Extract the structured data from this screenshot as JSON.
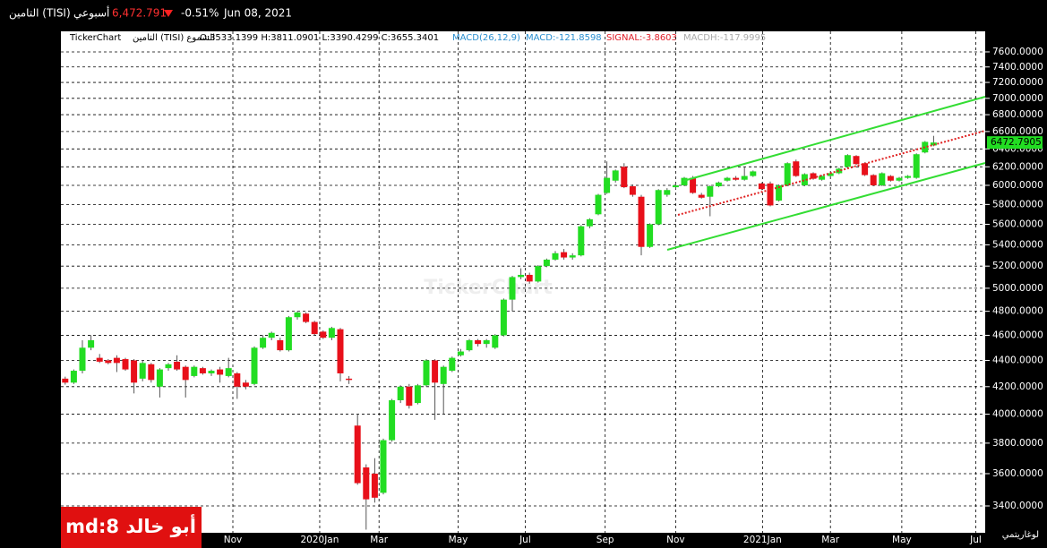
{
  "header": {
    "symbol": "التامين (TISI)",
    "period": "أسبوعي",
    "price": "6,472.791",
    "change": "-0.51%",
    "date": "Jun 08, 2021"
  },
  "legend": {
    "brand": "TickerChart",
    "instrument": "التامين (TISI) الشموع",
    "ohlc": "O:3533.1399 H:3811.0901 L:3390.4299 C:3655.3401",
    "macd": "MACD(26,12,9)",
    "macd_value": "MACD:-121.8598",
    "signal": "SIGNAL:-3.8603",
    "macdh": "MACDH:-117.9995"
  },
  "watermark": "TickerChart",
  "scale_mode": "لوغاريتمي",
  "badge": "md:8 أبو خالد",
  "chart_data": {
    "type": "candlestick",
    "log_scale": true,
    "grid": true,
    "up_color": "#22dd22",
    "down_color": "#e8101a",
    "last_price": 6472.7905,
    "x": [
      0,
      1,
      2,
      3,
      4,
      5,
      6,
      7,
      8,
      9,
      10,
      11,
      12,
      13,
      14,
      15,
      16,
      17,
      18,
      19,
      20,
      21,
      22,
      23,
      24,
      25,
      26,
      27,
      28,
      29,
      30,
      31,
      32,
      33,
      34,
      35,
      36,
      37,
      38,
      39,
      40,
      41,
      42,
      43,
      44,
      45,
      46,
      47,
      48,
      49,
      50,
      51,
      52,
      53,
      54,
      55,
      56,
      57,
      58,
      59,
      60,
      61,
      62,
      63,
      64,
      65,
      66,
      67,
      68,
      69,
      70,
      71,
      72,
      73,
      74,
      75,
      76,
      77,
      78,
      79,
      80,
      81,
      82,
      83,
      84,
      85,
      86,
      87,
      88,
      89,
      90,
      91,
      92,
      93,
      94,
      95,
      96,
      97,
      98,
      99,
      100,
      101
    ],
    "open": [
      4260,
      4230,
      4320,
      4500,
      4420,
      4400,
      4420,
      4410,
      4400,
      4260,
      4370,
      4200,
      4340,
      4390,
      4350,
      4280,
      4340,
      4300,
      4330,
      4280,
      4300,
      4230,
      4220,
      4500,
      4580,
      4560,
      4480,
      4750,
      4780,
      4710,
      4630,
      4580,
      4650,
      4260,
      3920,
      3640,
      3600,
      3480,
      3820,
      4100,
      4200,
      4080,
      4210,
      4400,
      4220,
      4320,
      4440,
      4480,
      4560,
      4530,
      4500,
      4600,
      4900,
      5100,
      5120,
      5060,
      5200,
      5260,
      5330,
      5280,
      5300,
      5580,
      5700,
      5920,
      6050,
      6200,
      5990,
      5880,
      5380,
      5600,
      5900,
      5980,
      6000,
      6080,
      5900,
      5880,
      5990,
      6050,
      6080,
      6060,
      6100,
      6020,
      6020,
      5840,
      6000,
      6260,
      6000,
      6130,
      6060,
      6100,
      6130,
      6200,
      6320,
      6240,
      6110,
      6000,
      6100,
      6050,
      6080,
      6080,
      6360,
      6440
    ],
    "high": [
      4275,
      4330,
      4560,
      4600,
      4450,
      4410,
      4440,
      4420,
      4410,
      4400,
      4380,
      4340,
      4380,
      4440,
      4360,
      4360,
      4350,
      4330,
      4350,
      4420,
      4310,
      4250,
      4510,
      4600,
      4630,
      4580,
      4760,
      4800,
      4790,
      4720,
      4640,
      4670,
      4660,
      4280,
      4000,
      3660,
      3700,
      3830,
      4110,
      4210,
      4220,
      4220,
      4410,
      4410,
      4360,
      4430,
      4490,
      4570,
      4570,
      4570,
      4610,
      4910,
      5110,
      5180,
      5140,
      5210,
      5270,
      5340,
      5360,
      5320,
      5590,
      5660,
      5910,
      6260,
      6170,
      6240,
      6010,
      5900,
      5610,
      5960,
      5970,
      6020,
      6090,
      6100,
      5920,
      6000,
      6040,
      6090,
      6100,
      6200,
      6160,
      6030,
      6040,
      6010,
      6250,
      6280,
      6130,
      6140,
      6110,
      6140,
      6190,
      6340,
      6330,
      6250,
      6120,
      6140,
      6110,
      6090,
      6110,
      6350,
      6490,
      6550
    ],
    "low": [
      4215,
      4220,
      4300,
      4480,
      4380,
      4370,
      4310,
      4320,
      4150,
      4240,
      4230,
      4120,
      4320,
      4320,
      4120,
      4270,
      4290,
      4280,
      4230,
      4270,
      4110,
      4180,
      4210,
      4490,
      4560,
      4470,
      4470,
      4730,
      4700,
      4600,
      4570,
      4560,
      4240,
      4220,
      3530,
      3260,
      3420,
      3470,
      3810,
      4080,
      4040,
      4070,
      4200,
      3960,
      4000,
      4310,
      4430,
      4470,
      4510,
      4500,
      4490,
      4590,
      4800,
      5080,
      5040,
      5050,
      5190,
      5250,
      5260,
      5260,
      5290,
      5560,
      5690,
      5910,
      6030,
      5970,
      5880,
      5300,
      5370,
      5590,
      5880,
      5960,
      5990,
      5910,
      5860,
      5680,
      5980,
      6040,
      6050,
      6050,
      6090,
      5950,
      5780,
      5830,
      5990,
      6090,
      5990,
      6060,
      6050,
      6090,
      6120,
      6190,
      6220,
      6100,
      5990,
      5990,
      6040,
      6040,
      6070,
      6070,
      6350,
      6430
    ],
    "close": [
      4230,
      4320,
      4500,
      4560,
      4390,
      4380,
      4380,
      4330,
      4230,
      4380,
      4250,
      4330,
      4370,
      4330,
      4250,
      4350,
      4300,
      4320,
      4290,
      4340,
      4200,
      4200,
      4500,
      4580,
      4620,
      4480,
      4750,
      4790,
      4710,
      4610,
      4580,
      4660,
      4300,
      4250,
      3540,
      3440,
      3450,
      3820,
      4100,
      4200,
      4060,
      4210,
      4400,
      4230,
      4350,
      4420,
      4470,
      4560,
      4530,
      4560,
      4600,
      4900,
      5100,
      5120,
      5060,
      5200,
      5260,
      5320,
      5280,
      5300,
      5580,
      5650,
      5900,
      6080,
      6160,
      5980,
      5900,
      5380,
      5600,
      5950,
      5950,
      6000,
      6080,
      5920,
      5870,
      5990,
      6030,
      6080,
      6060,
      6100,
      6150,
      5960,
      5790,
      6000,
      6240,
      6100,
      6120,
      6070,
      6100,
      6130,
      6180,
      6330,
      6230,
      6110,
      6000,
      6130,
      6050,
      6080,
      6100,
      6340,
      6480,
      6472.79
    ],
    "xlim": [
      -0.5,
      107
    ],
    "xticks": [
      {
        "value": 19.5,
        "label": "Nov"
      },
      {
        "value": 29.6,
        "label": "2020Jan"
      },
      {
        "value": 36.5,
        "label": "Mar"
      },
      {
        "value": 45.7,
        "label": "May"
      },
      {
        "value": 53.5,
        "label": "Jul"
      },
      {
        "value": 62.8,
        "label": "Sep"
      },
      {
        "value": 71,
        "label": "Nov"
      },
      {
        "value": 81.1,
        "label": "2021Jan"
      },
      {
        "value": 89,
        "label": "Mar"
      },
      {
        "value": 97.3,
        "label": "May"
      },
      {
        "value": 105.9,
        "label": "Jul"
      }
    ],
    "ylim": [
      3242,
      7882
    ],
    "yticks": [
      {
        "value": 3400,
        "label": "3400.0000"
      },
      {
        "value": 3600,
        "label": "3600.0000"
      },
      {
        "value": 3800,
        "label": "3800.0000"
      },
      {
        "value": 4000,
        "label": "4000.0000"
      },
      {
        "value": 4200,
        "label": "4200.0000"
      },
      {
        "value": 4400,
        "label": "4400.0000"
      },
      {
        "value": 4600,
        "label": "4600.0000"
      },
      {
        "value": 4800,
        "label": "4800.0000"
      },
      {
        "value": 5000,
        "label": "5000.0000"
      },
      {
        "value": 5200,
        "label": "5200.0000"
      },
      {
        "value": 5400,
        "label": "5400.0000"
      },
      {
        "value": 5600,
        "label": "5600.0000"
      },
      {
        "value": 5800,
        "label": "5800.0000"
      },
      {
        "value": 6000,
        "label": "6000.0000"
      },
      {
        "value": 6200,
        "label": "6200.0000"
      },
      {
        "value": 6400,
        "label": "6400.0000"
      },
      {
        "value": 6600,
        "label": "6600.0000"
      },
      {
        "value": 6800,
        "label": "6800.0000"
      },
      {
        "value": 7000,
        "label": "7000.0000"
      },
      {
        "value": 7200,
        "label": "7200.0000"
      },
      {
        "value": 7400,
        "label": "7400.0000"
      },
      {
        "value": 7600,
        "label": "7600.0000"
      }
    ]
  }
}
